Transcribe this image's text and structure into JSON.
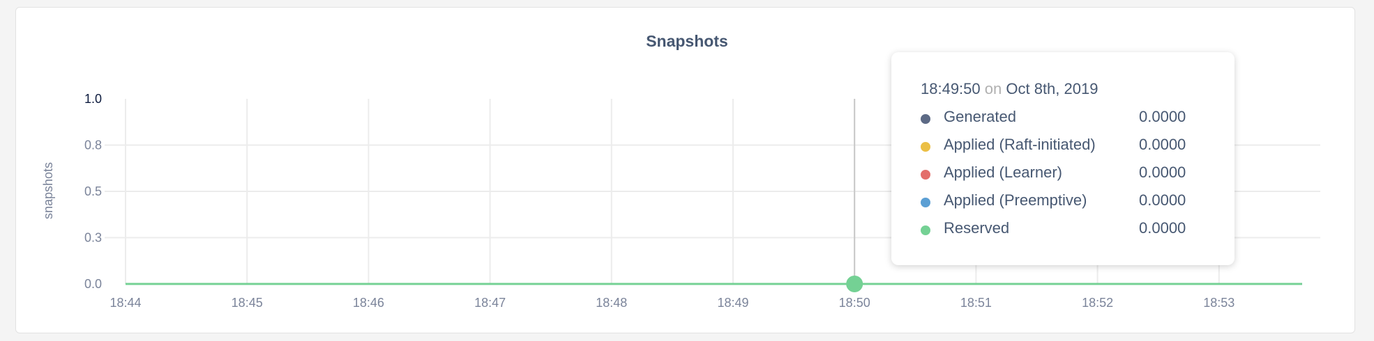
{
  "chart_data": {
    "type": "line",
    "title": "Snapshots",
    "ylabel": "snapshots",
    "xlabel": "",
    "ylim": [
      0,
      1
    ],
    "xlim": [
      "18:44",
      "18:53:41"
    ],
    "grid": true,
    "y_ticks": [
      {
        "value": 0,
        "label": "0.0"
      },
      {
        "value": 0.25,
        "label": "0.3"
      },
      {
        "value": 0.5,
        "label": "0.5"
      },
      {
        "value": 0.75,
        "label": "0.8"
      },
      {
        "value": 1,
        "label": "1.0"
      }
    ],
    "x_ticks": [
      "18:44",
      "18:45",
      "18:46",
      "18:47",
      "18:48",
      "18:49",
      "18:50",
      "18:51",
      "18:52",
      "18:53"
    ],
    "series": [
      {
        "name": "Generated",
        "color": "#5d6a85",
        "x": [
          "18:44",
          "18:53:41"
        ],
        "values": [
          0,
          0
        ]
      },
      {
        "name": "Applied (Raft-initiated)",
        "color": "#ebbf45",
        "x": [
          "18:44",
          "18:53:41"
        ],
        "values": [
          0,
          0
        ]
      },
      {
        "name": "Applied (Learner)",
        "color": "#e36e6a",
        "x": [
          "18:44",
          "18:53:41"
        ],
        "values": [
          0,
          0
        ]
      },
      {
        "name": "Applied (Preemptive)",
        "color": "#5b9fd4",
        "x": [
          "18:44",
          "18:53:41"
        ],
        "values": [
          0,
          0
        ]
      },
      {
        "name": "Reserved",
        "color": "#74d194",
        "x": [
          "18:44",
          "18:53:41"
        ],
        "values": [
          0,
          0
        ]
      }
    ],
    "hover": {
      "time": "18:50"
    }
  },
  "tooltip": {
    "time": "18:49:50",
    "on": "on",
    "date": "Oct 8th, 2019",
    "rows": [
      {
        "label": "Generated",
        "value": "0.0000",
        "color": "#5d6a85"
      },
      {
        "label": "Applied (Raft-initiated)",
        "value": "0.0000",
        "color": "#ebbf45"
      },
      {
        "label": "Applied (Learner)",
        "value": "0.0000",
        "color": "#e36e6a"
      },
      {
        "label": "Applied (Preemptive)",
        "value": "0.0000",
        "color": "#5b9fd4"
      },
      {
        "label": "Reserved",
        "value": "0.0000",
        "color": "#74d194"
      }
    ]
  }
}
